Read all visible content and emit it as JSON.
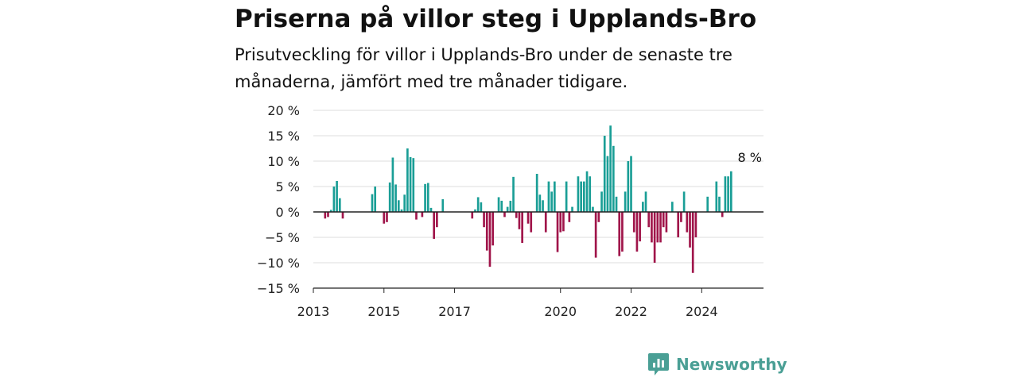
{
  "title": "Priserna på villor steg i Upplands-Bro",
  "subtitle": "Prisutveckling för villor i Upplands-Bro under de senaste tre månaderna, jämfört med tre månader tidigare.",
  "brand": {
    "name": "Newsworthy",
    "icon": "newsworthy-logo-icon"
  },
  "colors": {
    "positive": "#1a9e96",
    "negative": "#a0154a",
    "grid": "#dddddd",
    "axis": "#222222",
    "brand": "#4a9f95"
  },
  "chart_data": {
    "type": "bar",
    "title": "",
    "xlabel": "",
    "ylabel": "",
    "ylim": [
      -15,
      20
    ],
    "xlim": [
      "2013-01",
      "2025-10"
    ],
    "grid": true,
    "y_ticks": [
      20,
      15,
      10,
      5,
      0,
      -5,
      -10,
      -15
    ],
    "y_tick_labels": [
      "20 %",
      "15 %",
      "10 %",
      "5 %",
      "0 %",
      "−5 %",
      "−10 %",
      "−15 %"
    ],
    "x_ticks": [
      "2013-01",
      "2015-01",
      "2017-01",
      "2020-01",
      "2022-01",
      "2024-01"
    ],
    "x_tick_labels": [
      "2013",
      "2015",
      "2017",
      "2020",
      "2022",
      "2024"
    ],
    "annotation": {
      "text": "8 %",
      "x": "2025-01",
      "y": 8
    },
    "series": [
      {
        "values": [
          {
            "x": "2013-05",
            "y": -1.3
          },
          {
            "x": "2013-06",
            "y": -1.0
          },
          {
            "x": "2013-07",
            "y": 0.4
          },
          {
            "x": "2013-08",
            "y": 5.0
          },
          {
            "x": "2013-09",
            "y": 6.1
          },
          {
            "x": "2013-10",
            "y": 2.7
          },
          {
            "x": "2013-11",
            "y": -1.3
          },
          {
            "x": "2014-09",
            "y": 3.5
          },
          {
            "x": "2014-10",
            "y": 5.0
          },
          {
            "x": "2015-01",
            "y": -2.3
          },
          {
            "x": "2015-02",
            "y": -2.0
          },
          {
            "x": "2015-03",
            "y": 5.8
          },
          {
            "x": "2015-04",
            "y": 10.7
          },
          {
            "x": "2015-05",
            "y": 5.4
          },
          {
            "x": "2015-06",
            "y": 2.3
          },
          {
            "x": "2015-07",
            "y": 0.5
          },
          {
            "x": "2015-08",
            "y": 3.4
          },
          {
            "x": "2015-09",
            "y": 12.5
          },
          {
            "x": "2015-10",
            "y": 10.8
          },
          {
            "x": "2015-11",
            "y": 10.6
          },
          {
            "x": "2015-12",
            "y": -1.5
          },
          {
            "x": "2016-02",
            "y": -1.0
          },
          {
            "x": "2016-03",
            "y": 5.5
          },
          {
            "x": "2016-04",
            "y": 5.7
          },
          {
            "x": "2016-05",
            "y": 0.8
          },
          {
            "x": "2016-06",
            "y": -5.3
          },
          {
            "x": "2016-07",
            "y": -3.0
          },
          {
            "x": "2016-09",
            "y": 2.5
          },
          {
            "x": "2017-07",
            "y": -1.3
          },
          {
            "x": "2017-08",
            "y": 0.5
          },
          {
            "x": "2017-09",
            "y": 2.9
          },
          {
            "x": "2017-10",
            "y": 1.9
          },
          {
            "x": "2017-11",
            "y": -3.0
          },
          {
            "x": "2017-12",
            "y": -7.6
          },
          {
            "x": "2018-01",
            "y": -10.8
          },
          {
            "x": "2018-02",
            "y": -6.6
          },
          {
            "x": "2018-04",
            "y": 2.9
          },
          {
            "x": "2018-05",
            "y": 2.2
          },
          {
            "x": "2018-06",
            "y": -1.0
          },
          {
            "x": "2018-07",
            "y": 1.0
          },
          {
            "x": "2018-08",
            "y": 2.2
          },
          {
            "x": "2018-09",
            "y": 6.9
          },
          {
            "x": "2018-10",
            "y": -1.2
          },
          {
            "x": "2018-11",
            "y": -3.4
          },
          {
            "x": "2018-12",
            "y": -6.1
          },
          {
            "x": "2019-02",
            "y": -2.3
          },
          {
            "x": "2019-03",
            "y": -4.0
          },
          {
            "x": "2019-05",
            "y": 7.5
          },
          {
            "x": "2019-06",
            "y": 3.4
          },
          {
            "x": "2019-07",
            "y": 2.3
          },
          {
            "x": "2019-08",
            "y": -4.0
          },
          {
            "x": "2019-09",
            "y": 6.0
          },
          {
            "x": "2019-10",
            "y": 4.0
          },
          {
            "x": "2019-11",
            "y": 6.0
          },
          {
            "x": "2019-12",
            "y": -7.9
          },
          {
            "x": "2020-01",
            "y": -4.0
          },
          {
            "x": "2020-02",
            "y": -3.8
          },
          {
            "x": "2020-03",
            "y": 6.0
          },
          {
            "x": "2020-04",
            "y": -2.0
          },
          {
            "x": "2020-05",
            "y": 1.0
          },
          {
            "x": "2020-07",
            "y": 7.0
          },
          {
            "x": "2020-08",
            "y": 6.0
          },
          {
            "x": "2020-09",
            "y": 6.0
          },
          {
            "x": "2020-10",
            "y": 8.0
          },
          {
            "x": "2020-11",
            "y": 7.0
          },
          {
            "x": "2020-12",
            "y": 1.0
          },
          {
            "x": "2021-01",
            "y": -9.0
          },
          {
            "x": "2021-02",
            "y": -2.0
          },
          {
            "x": "2021-03",
            "y": 4.0
          },
          {
            "x": "2021-04",
            "y": 15.0
          },
          {
            "x": "2021-05",
            "y": 11.0
          },
          {
            "x": "2021-06",
            "y": 17.0
          },
          {
            "x": "2021-07",
            "y": 13.0
          },
          {
            "x": "2021-08",
            "y": 3.0
          },
          {
            "x": "2021-09",
            "y": -8.7
          },
          {
            "x": "2021-10",
            "y": -7.8
          },
          {
            "x": "2021-11",
            "y": 4.0
          },
          {
            "x": "2021-12",
            "y": 10.0
          },
          {
            "x": "2022-01",
            "y": 11.0
          },
          {
            "x": "2022-02",
            "y": -4.0
          },
          {
            "x": "2022-03",
            "y": -7.8
          },
          {
            "x": "2022-04",
            "y": -5.8
          },
          {
            "x": "2022-05",
            "y": 2.0
          },
          {
            "x": "2022-06",
            "y": 4.0
          },
          {
            "x": "2022-07",
            "y": -3.0
          },
          {
            "x": "2022-08",
            "y": -6.0
          },
          {
            "x": "2022-09",
            "y": -10.0
          },
          {
            "x": "2022-10",
            "y": -6.0
          },
          {
            "x": "2022-11",
            "y": -6.0
          },
          {
            "x": "2022-12",
            "y": -3.0
          },
          {
            "x": "2023-01",
            "y": -4.0
          },
          {
            "x": "2023-03",
            "y": 2.0
          },
          {
            "x": "2023-05",
            "y": -5.0
          },
          {
            "x": "2023-06",
            "y": -2.0
          },
          {
            "x": "2023-07",
            "y": 4.0
          },
          {
            "x": "2023-08",
            "y": -4.0
          },
          {
            "x": "2023-09",
            "y": -7.0
          },
          {
            "x": "2023-10",
            "y": -12.0
          },
          {
            "x": "2023-11",
            "y": -5.0
          },
          {
            "x": "2024-03",
            "y": 3.0
          },
          {
            "x": "2024-06",
            "y": 6.0
          },
          {
            "x": "2024-07",
            "y": 3.0
          },
          {
            "x": "2024-08",
            "y": -1.0
          },
          {
            "x": "2024-09",
            "y": 7.0
          },
          {
            "x": "2024-10",
            "y": 7.0
          },
          {
            "x": "2024-11",
            "y": 8.0
          }
        ]
      }
    ]
  }
}
